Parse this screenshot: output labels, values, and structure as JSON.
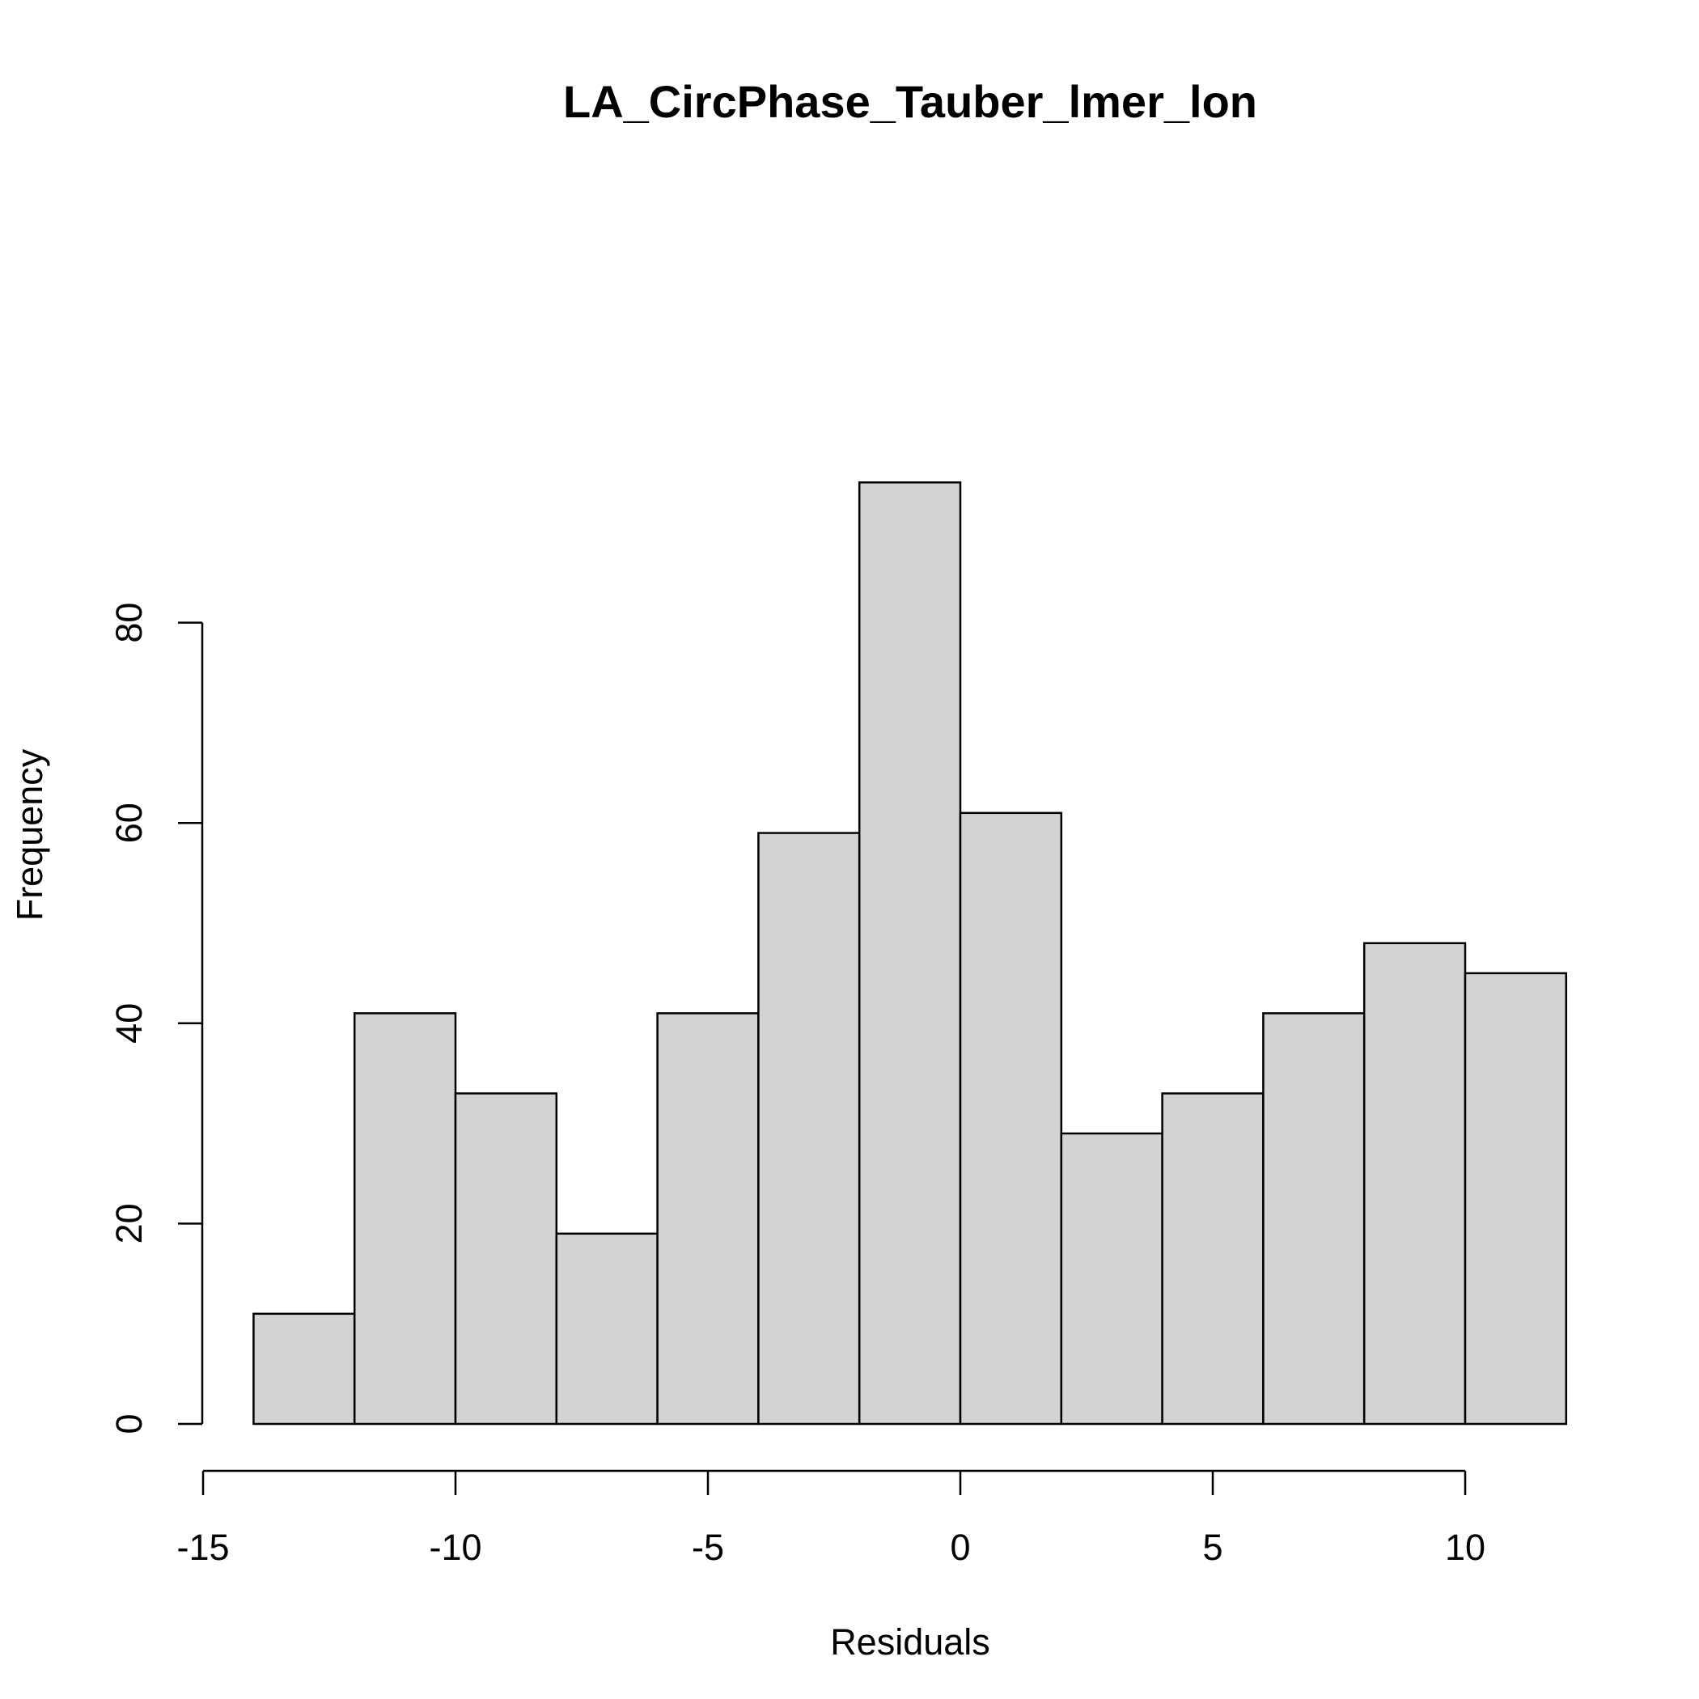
{
  "chart_data": {
    "type": "histogram",
    "title": "LA_CircPhase_Tauber_lmer_lon",
    "xlabel": "Residuals",
    "ylabel": "Frequency",
    "bins": [
      {
        "start": -14,
        "end": -12,
        "count": 11
      },
      {
        "start": -12,
        "end": -10,
        "count": 41
      },
      {
        "start": -10,
        "end": -8,
        "count": 33
      },
      {
        "start": -8,
        "end": -6,
        "count": 19
      },
      {
        "start": -6,
        "end": -4,
        "count": 41
      },
      {
        "start": -4,
        "end": -2,
        "count": 59
      },
      {
        "start": -2,
        "end": 0,
        "count": 94
      },
      {
        "start": 0,
        "end": 2,
        "count": 61
      },
      {
        "start": 2,
        "end": 4,
        "count": 29
      },
      {
        "start": 4,
        "end": 6,
        "count": 33
      },
      {
        "start": 6,
        "end": 8,
        "count": 41
      },
      {
        "start": 8,
        "end": 10,
        "count": 48
      },
      {
        "start": 10,
        "end": 12,
        "count": 45
      }
    ],
    "x_ticks": [
      {
        "value": -15,
        "label": "-15"
      },
      {
        "value": -10,
        "label": "-10"
      },
      {
        "value": -5,
        "label": "-5"
      },
      {
        "value": 0,
        "label": "0"
      },
      {
        "value": 5,
        "label": "5"
      },
      {
        "value": 10,
        "label": "10"
      }
    ],
    "y_ticks": [
      {
        "value": 0,
        "label": "0"
      },
      {
        "value": 20,
        "label": "20"
      },
      {
        "value": 40,
        "label": "40"
      },
      {
        "value": 60,
        "label": "60"
      },
      {
        "value": 80,
        "label": "80"
      }
    ],
    "bar_color": "#d3d3d3",
    "edge_color": "#000000",
    "grid": false,
    "legend": "none"
  }
}
